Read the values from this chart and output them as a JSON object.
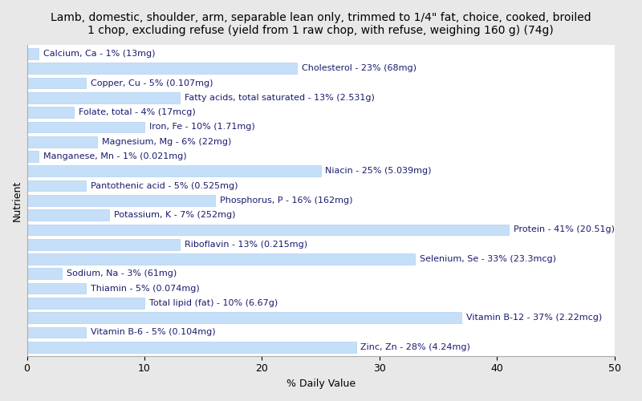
{
  "title": "Lamb, domestic, shoulder, arm, separable lean only, trimmed to 1/4\" fat, choice, cooked, broiled\n1 chop, excluding refuse (yield from 1 raw chop, with refuse, weighing 160 g) (74g)",
  "xlabel": "% Daily Value",
  "ylabel": "Nutrient",
  "nutrients": [
    {
      "label": "Calcium, Ca - 1% (13mg)",
      "value": 1
    },
    {
      "label": "Cholesterol - 23% (68mg)",
      "value": 23
    },
    {
      "label": "Copper, Cu - 5% (0.107mg)",
      "value": 5
    },
    {
      "label": "Fatty acids, total saturated - 13% (2.531g)",
      "value": 13
    },
    {
      "label": "Folate, total - 4% (17mcg)",
      "value": 4
    },
    {
      "label": "Iron, Fe - 10% (1.71mg)",
      "value": 10
    },
    {
      "label": "Magnesium, Mg - 6% (22mg)",
      "value": 6
    },
    {
      "label": "Manganese, Mn - 1% (0.021mg)",
      "value": 1
    },
    {
      "label": "Niacin - 25% (5.039mg)",
      "value": 25
    },
    {
      "label": "Pantothenic acid - 5% (0.525mg)",
      "value": 5
    },
    {
      "label": "Phosphorus, P - 16% (162mg)",
      "value": 16
    },
    {
      "label": "Potassium, K - 7% (252mg)",
      "value": 7
    },
    {
      "label": "Protein - 41% (20.51g)",
      "value": 41
    },
    {
      "label": "Riboflavin - 13% (0.215mg)",
      "value": 13
    },
    {
      "label": "Selenium, Se - 33% (23.3mcg)",
      "value": 33
    },
    {
      "label": "Sodium, Na - 3% (61mg)",
      "value": 3
    },
    {
      "label": "Thiamin - 5% (0.074mg)",
      "value": 5
    },
    {
      "label": "Total lipid (fat) - 10% (6.67g)",
      "value": 10
    },
    {
      "label": "Vitamin B-12 - 37% (2.22mcg)",
      "value": 37
    },
    {
      "label": "Vitamin B-6 - 5% (0.104mg)",
      "value": 5
    },
    {
      "label": "Zinc, Zn - 28% (4.24mg)",
      "value": 28
    }
  ],
  "bar_color": "#c5dff8",
  "bar_edge_color": "#a8c8f0",
  "background_color": "#e8e8e8",
  "plot_bg_color": "#ffffff",
  "text_color": "#1a1a6e",
  "xlim": [
    0,
    50
  ],
  "title_fontsize": 10,
  "label_fontsize": 8,
  "tick_fontsize": 9,
  "bar_height": 0.75
}
